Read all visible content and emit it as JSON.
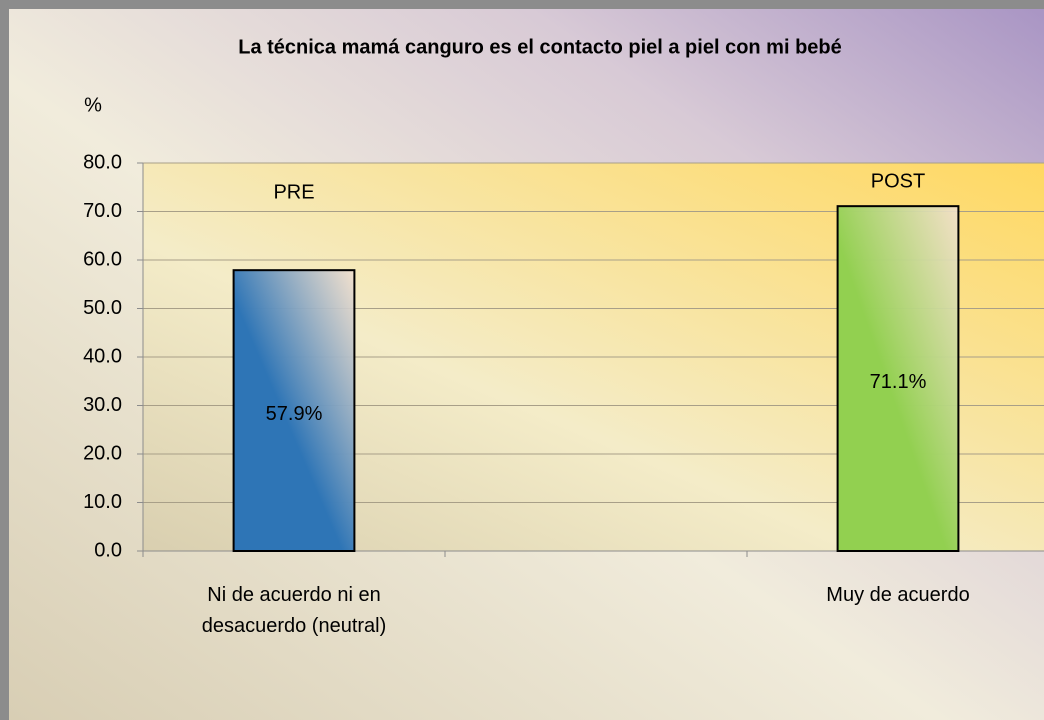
{
  "chart_data": {
    "type": "bar",
    "title": "La técnica mamá canguro es el contacto piel a piel con mi bebé",
    "y_label": "%",
    "categories": [
      "Ni de acuerdo ni en desacuerdo (neutral)",
      null,
      "Muy de acuerdo"
    ],
    "series": [
      {
        "name": "PRE",
        "color": "#2e75b6",
        "values": [
          57.9,
          null,
          null
        ],
        "value_labels": [
          "57.9%",
          null,
          null
        ]
      },
      {
        "name": "POST",
        "color": "#92d050",
        "values": [
          null,
          null,
          71.1
        ],
        "value_labels": [
          null,
          null,
          "71.1%"
        ]
      }
    ],
    "ylim": [
      0,
      80
    ],
    "yticks": [
      {
        "value": 0,
        "label": "0.0"
      },
      {
        "value": 10,
        "label": "10.0"
      },
      {
        "value": 20,
        "label": "20.0"
      },
      {
        "value": 30,
        "label": "30.0"
      },
      {
        "value": 40,
        "label": "40.0"
      },
      {
        "value": 50,
        "label": "50.0"
      },
      {
        "value": 60,
        "label": "60.0"
      },
      {
        "value": 70,
        "label": "70.0"
      },
      {
        "value": 80,
        "label": "80.0"
      }
    ],
    "grid": true
  }
}
